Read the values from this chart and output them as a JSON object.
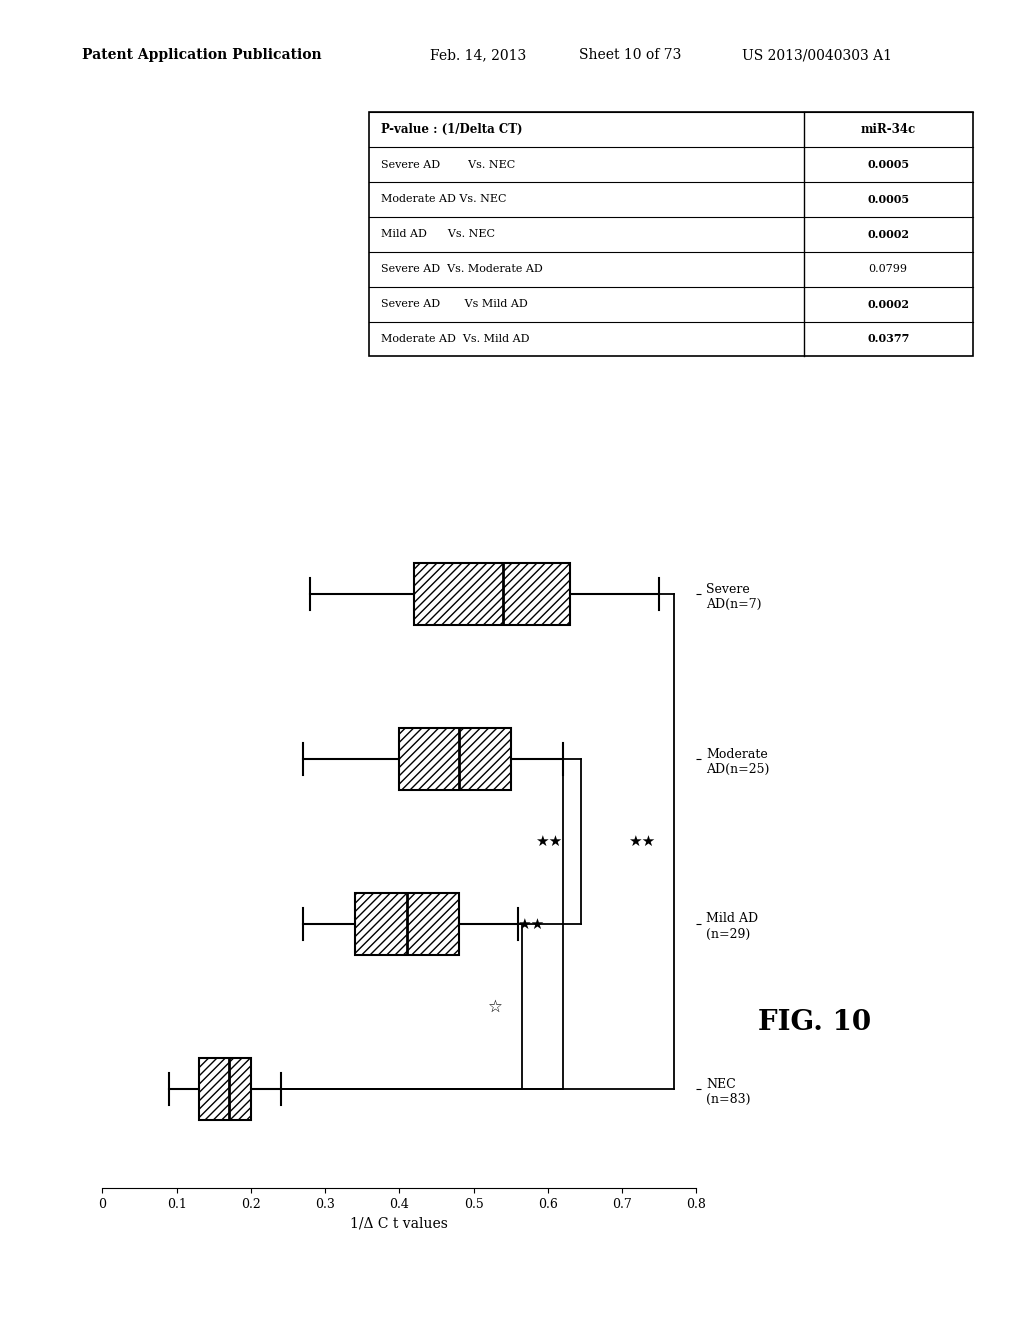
{
  "title": "FIG. 10",
  "ylabel": "1/Δ C t values",
  "patent_header": "Patent Application Publication",
  "patent_date": "Feb. 14, 2013",
  "patent_sheet": "Sheet 10 of 73",
  "patent_num": "US 2013/0040303 A1",
  "group_keys": [
    "Severe AD",
    "Moderate AD",
    "Mild AD",
    "NEC"
  ],
  "group_labels": [
    "Severe\nAD(n=7)",
    "Moderate\nAD(n=25)",
    "Mild AD\n(n=29)",
    "NEC\n(n=83)"
  ],
  "box_data": {
    "Severe AD": {
      "q1": 0.42,
      "median": 0.54,
      "q3": 0.63,
      "whisker_low": 0.28,
      "whisker_high": 0.75
    },
    "Moderate AD": {
      "q1": 0.4,
      "median": 0.48,
      "q3": 0.55,
      "whisker_low": 0.27,
      "whisker_high": 0.62
    },
    "Mild AD": {
      "q1": 0.34,
      "median": 0.41,
      "q3": 0.48,
      "whisker_low": 0.27,
      "whisker_high": 0.56
    },
    "NEC": {
      "q1": 0.13,
      "median": 0.17,
      "q3": 0.2,
      "whisker_low": 0.09,
      "whisker_high": 0.24
    }
  },
  "xlim": [
    0,
    0.8
  ],
  "xticks": [
    0.0,
    0.1,
    0.2,
    0.3,
    0.4,
    0.5,
    0.6,
    0.7,
    0.8
  ],
  "hatch_pattern": "////",
  "table_header": [
    "P-value : (1/Delta CT)",
    "miR-34c"
  ],
  "table_rows": [
    [
      "Severe AD        Vs. NEC",
      "0.0005"
    ],
    [
      "Moderate AD Vs. NEC",
      "0.0005"
    ],
    [
      "Mild AD      Vs. NEC",
      "0.0002"
    ],
    [
      "Severe AD  Vs. Moderate AD",
      "0.0799"
    ],
    [
      "Severe AD       Vs Mild AD",
      "0.0002"
    ],
    [
      "Moderate AD  Vs. Mild AD",
      "0.0377"
    ]
  ],
  "table_bold": [
    true,
    true,
    true,
    false,
    true,
    true
  ],
  "background_color": "#ffffff"
}
